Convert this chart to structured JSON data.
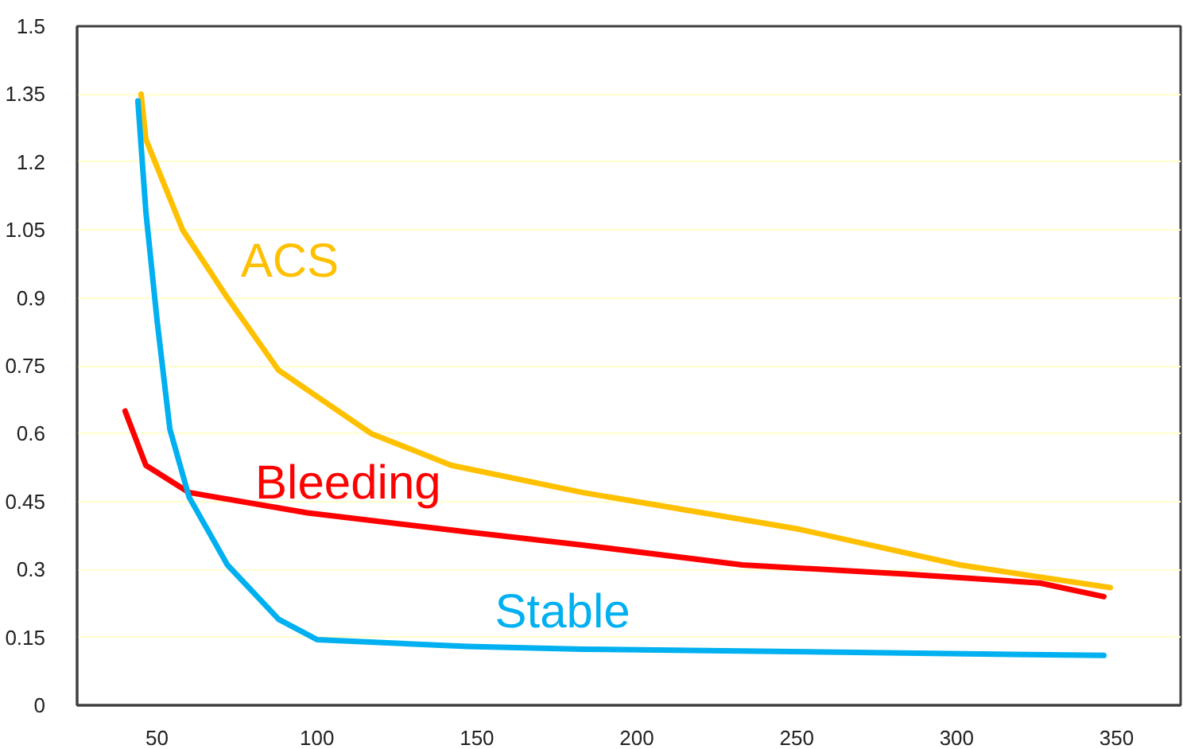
{
  "chart_data": {
    "type": "line",
    "xlim": [
      25,
      370
    ],
    "ylim": [
      0,
      1.5
    ],
    "xticks": [
      50,
      100,
      150,
      200,
      250,
      300,
      350
    ],
    "yticks": [
      0,
      0.15,
      0.3,
      0.45,
      0.6,
      0.75,
      0.9,
      1.05,
      1.2,
      1.35,
      1.5
    ],
    "grid": "y",
    "line_style": "solid",
    "marker": "none",
    "series": [
      {
        "name": "ACS",
        "color": "#ffc000",
        "x": [
          45,
          46.5,
          58,
          72,
          88,
          117,
          142,
          183,
          250,
          301,
          348
        ],
        "values": [
          1.35,
          1.25,
          1.05,
          0.9,
          0.74,
          0.6,
          0.53,
          0.47,
          0.39,
          0.31,
          0.26
        ]
      },
      {
        "name": "Bleeding",
        "color": "#ff0000",
        "x": [
          40,
          46.5,
          60,
          97,
          147,
          183,
          233,
          284,
          326,
          346
        ],
        "values": [
          0.65,
          0.53,
          0.47,
          0.425,
          0.383,
          0.354,
          0.31,
          0.29,
          0.27,
          0.24
        ]
      },
      {
        "name": "Stable",
        "color": "#00b0f0",
        "x": [
          44,
          46.5,
          50,
          54,
          60,
          72,
          88,
          100,
          147,
          183,
          346
        ],
        "values": [
          1.335,
          1.09,
          0.85,
          0.61,
          0.46,
          0.31,
          0.19,
          0.145,
          0.13,
          0.124,
          0.11
        ]
      }
    ]
  }
}
